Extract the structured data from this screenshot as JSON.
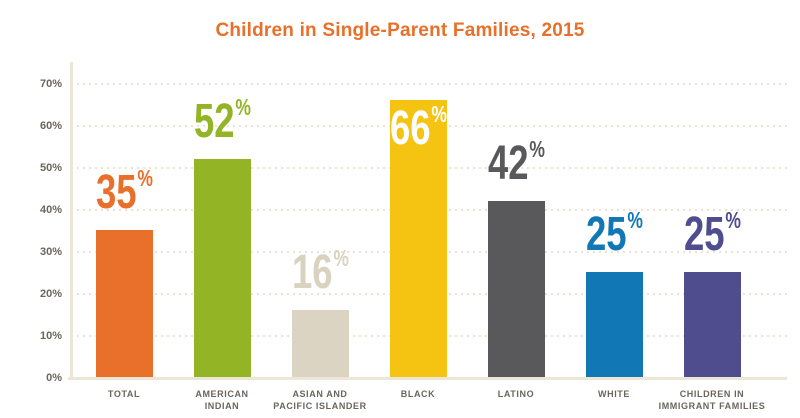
{
  "title": "Children in Single-Parent Families, 2015",
  "chart_data": {
    "type": "bar",
    "title": "Children in Single-Parent Families, 2015",
    "categories": [
      "TOTAL",
      "AMERICAN INDIAN",
      "ASIAN AND PACIFIC ISLANDER",
      "BLACK",
      "LATINO",
      "WHITE",
      "CHILDREN IN IMMIGRANT FAMILIES"
    ],
    "category_lines": [
      [
        "TOTAL"
      ],
      [
        "AMERICAN",
        "INDIAN"
      ],
      [
        "ASIAN AND",
        "PACIFIC ISLANDER"
      ],
      [
        "BLACK"
      ],
      [
        "LATINO"
      ],
      [
        "WHITE"
      ],
      [
        "CHILDREN IN",
        "IMMIGRANT FAMILIES"
      ]
    ],
    "values": [
      35,
      52,
      16,
      66,
      42,
      25,
      25
    ],
    "value_labels": [
      [
        "35",
        "%"
      ],
      [
        "52",
        "%"
      ],
      [
        "16",
        "%"
      ],
      [
        "66",
        "%"
      ],
      [
        "42",
        "%"
      ],
      [
        "25",
        "%"
      ],
      [
        "25",
        "%"
      ]
    ],
    "bar_colors": [
      "#e8702a",
      "#93b425",
      "#dbd4c3",
      "#f5c311",
      "#59585a",
      "#1278b5",
      "#4f4d8d"
    ],
    "value_label_colors": [
      "#e8702a",
      "#93b425",
      "#d9d2c0",
      "#ffffff",
      "#59585a",
      "#1278b5",
      "#4f4d8d"
    ],
    "value_label_inside": [
      false,
      false,
      false,
      true,
      false,
      false,
      false
    ],
    "xlabel": "",
    "ylabel": "",
    "ylim": [
      0,
      70
    ],
    "yticks": [
      "0%",
      "10%",
      "20%",
      "30%",
      "40%",
      "50%",
      "60%",
      "70%"
    ],
    "grid": "horizontal-dotted",
    "legend": "none"
  },
  "colors": {
    "title": "#e8702a",
    "axis": "#ece6d7",
    "gridline": "#e9e3d3",
    "tick_text": "#6b655c",
    "background": "#ffffff"
  }
}
